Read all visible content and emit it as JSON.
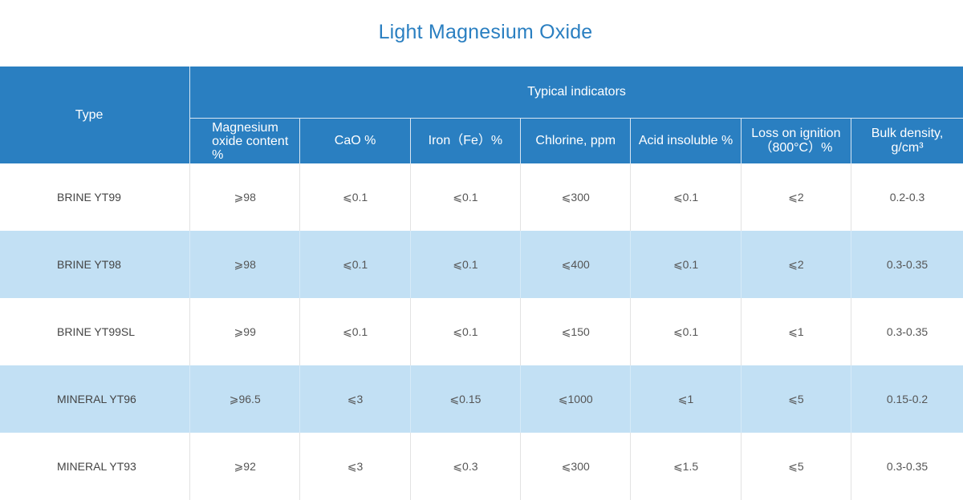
{
  "title": "Light Magnesium Oxide",
  "table": {
    "type_header": "Type",
    "group_header": "Typical indicators",
    "columns": [
      "Magnesium oxide content %",
      "CaO %",
      "Iron（Fe）%",
      "Chlorine, ppm",
      "Acid insoluble %",
      "Loss on ignition（800°C）%",
      "Bulk density, g/cm³"
    ],
    "rows": [
      {
        "type": "BRINE YT99",
        "values": [
          "⩾98",
          "⩽0.1",
          "⩽0.1",
          "⩽300",
          "⩽0.1",
          "⩽2",
          "0.2-0.3"
        ]
      },
      {
        "type": "BRINE YT98",
        "values": [
          "⩾98",
          "⩽0.1",
          "⩽0.1",
          "⩽400",
          "⩽0.1",
          "⩽2",
          "0.3-0.35"
        ]
      },
      {
        "type": "BRINE YT99SL",
        "values": [
          "⩾99",
          "⩽0.1",
          "⩽0.1",
          "⩽150",
          "⩽0.1",
          "⩽1",
          "0.3-0.35"
        ]
      },
      {
        "type": "MINERAL YT96",
        "values": [
          "⩾96.5",
          "⩽3",
          "⩽0.15",
          "⩽1000",
          "⩽1",
          "⩽5",
          "0.15-0.2"
        ]
      },
      {
        "type": "MINERAL YT93",
        "values": [
          "⩾92",
          "⩽3",
          "⩽0.3",
          "⩽300",
          "⩽1.5",
          "⩽5",
          "0.3-0.35"
        ]
      }
    ]
  },
  "colors": {
    "header_blue": "#2a7fc1",
    "row_alt_blue": "#c2e0f4",
    "title_blue": "#2a7fc1"
  }
}
